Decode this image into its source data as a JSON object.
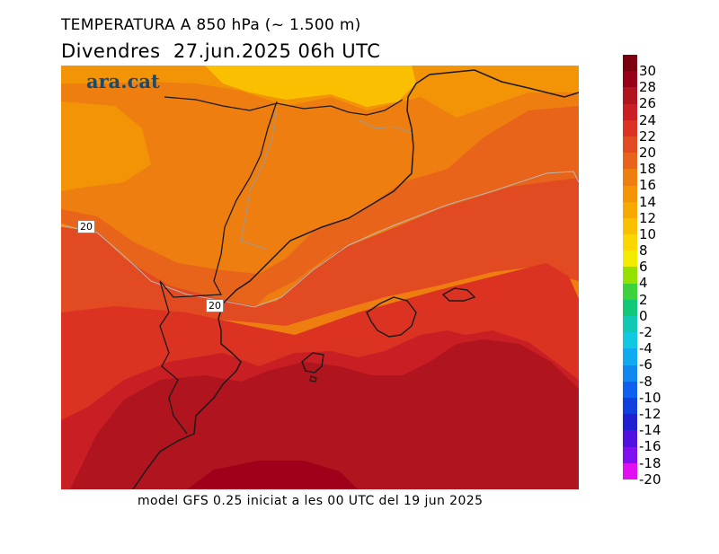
{
  "header": {
    "title": "TEMPERATURA A 850 hPa (~ 1.500 m)",
    "date_line": "Divendres  27.jun.2025 06h UTC"
  },
  "brand": "ara.cat",
  "footer": "model GFS 0.25 iniciat a les 00 UTC del 19 jun 2025",
  "contour_labels": [
    "20",
    "20"
  ],
  "legend": {
    "labels": [
      "30",
      "28",
      "26",
      "24",
      "22",
      "20",
      "18",
      "16",
      "14",
      "12",
      "10",
      "8",
      "6",
      "4",
      "2",
      "0",
      "-2",
      "-4",
      "-6",
      "-8",
      "-10",
      "-12",
      "-14",
      "-16",
      "-18",
      "-20"
    ],
    "colors": [
      "#7a0010",
      "#960018",
      "#b0141e",
      "#c81e24",
      "#dc3222",
      "#e24a22",
      "#e8641a",
      "#ee7e10",
      "#f29406",
      "#f6aa00",
      "#fac000",
      "#fcd600",
      "#f4ec00",
      "#96e000",
      "#3cd23c",
      "#10c878",
      "#10c8b4",
      "#10c8e0",
      "#10aaf0",
      "#1088f0",
      "#1060f0",
      "#1040e0",
      "#2020d0",
      "#5010e0",
      "#8010f0",
      "#e010f0"
    ]
  },
  "map_colors": {
    "c30": "#a0001a",
    "c28": "#b0141e",
    "c24": "#c81e24",
    "c22": "#dc3222",
    "c20": "#e24a22",
    "c18": "#e8641a",
    "c16": "#ee7e10",
    "c14": "#f29406",
    "c12": "#f6aa00",
    "c10": "#fac000"
  }
}
